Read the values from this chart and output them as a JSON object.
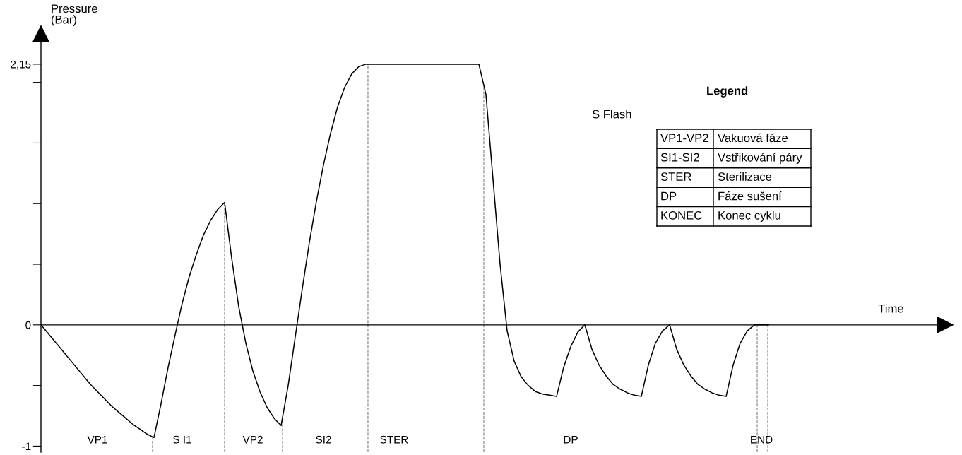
{
  "chart_data": {
    "type": "line",
    "xlabel": "Time",
    "ylabel": "Pressure\n(Bar)",
    "categories": [
      null,
      null,
      null,
      null,
      null,
      null,
      null,
      null,
      "VP1",
      null,
      null,
      null,
      null,
      null,
      null,
      null,
      null,
      null,
      null,
      null,
      "S I1",
      null,
      null,
      null,
      null,
      null,
      null,
      null,
      null,
      null,
      "VP2",
      null,
      null,
      null,
      null,
      null,
      null,
      null,
      null,
      null,
      "SI2",
      null,
      null,
      null,
      null,
      null,
      null,
      null,
      null,
      null,
      "STER",
      null,
      null,
      null,
      null,
      null,
      null,
      null,
      null,
      null,
      null,
      null,
      null,
      null,
      null,
      null,
      null,
      null,
      null,
      null,
      null,
      null,
      null,
      null,
      null,
      "DP",
      null,
      null,
      null,
      null,
      null,
      null,
      null,
      null,
      null,
      null,
      null,
      null,
      null,
      null,
      null,
      null,
      null,
      null,
      null,
      null,
      null,
      null,
      null,
      null,
      null,
      null,
      "END",
      null,
      null,
      null,
      null,
      null,
      null,
      null,
      null,
      null,
      null,
      null,
      null,
      null,
      null,
      null,
      null,
      null,
      null,
      null,
      null,
      null,
      null,
      null,
      null,
      null,
      null
    ],
    "series": [
      {
        "color": "#000000",
        "values": [
          0,
          -0.07,
          -0.14,
          -0.21,
          -0.28,
          -0.35,
          -0.42,
          -0.49,
          -0.55,
          -0.61,
          -0.67,
          -0.72,
          -0.77,
          -0.82,
          -0.86,
          -0.9,
          -0.93,
          -0.65,
          -0.35,
          -0.08,
          0.18,
          0.4,
          0.58,
          0.74,
          0.86,
          0.95,
          1.01,
          0.55,
          0.15,
          -0.15,
          -0.38,
          -0.55,
          -0.68,
          -0.77,
          -0.83,
          -0.5,
          -0.1,
          0.3,
          0.68,
          1.02,
          1.32,
          1.58,
          1.8,
          1.96,
          2.07,
          2.13,
          2.15,
          2.15,
          2.15,
          2.15,
          2.15,
          2.15,
          2.15,
          2.15,
          2.15,
          2.15,
          2.15,
          2.15,
          2.15,
          2.15,
          2.15,
          2.15,
          2.15,
          1.9,
          1.2,
          0.5,
          -0.05,
          -0.3,
          -0.43,
          -0.5,
          -0.55,
          -0.57,
          -0.58,
          -0.59,
          -0.35,
          -0.18,
          -0.06,
          0,
          -0.2,
          -0.33,
          -0.42,
          -0.49,
          -0.53,
          -0.56,
          -0.58,
          -0.59,
          -0.33,
          -0.15,
          -0.05,
          0,
          -0.2,
          -0.33,
          -0.42,
          -0.49,
          -0.53,
          -0.56,
          -0.58,
          -0.59,
          -0.33,
          -0.15,
          -0.05,
          0,
          0,
          0,
          null,
          null,
          null,
          null,
          null,
          null,
          null,
          null,
          null,
          null,
          null,
          null,
          null,
          null,
          null,
          null,
          null,
          null,
          null,
          null,
          null,
          null,
          null,
          null,
          null
        ]
      }
    ],
    "ylim": [
      -1.05,
      2.4
    ],
    "yticks": [
      {
        "value": -1,
        "label": "-1"
      },
      {
        "value": -0.5,
        "label": null
      },
      0,
      {
        "value": 0.5,
        "label": null
      },
      {
        "value": 1,
        "label": null
      },
      {
        "value": 1.5,
        "label": null
      },
      {
        "value": 2,
        "label": null
      },
      {
        "value": 2.15,
        "label": "2,15"
      }
    ],
    "line_style": "solid",
    "marker": "none",
    "annotations": [
      "S Flash",
      "Legend",
      "VP1-VP2",
      "Vakuová fáze",
      "SI1-SI2",
      "Vstřikování páry",
      "STER",
      "Sterilizace",
      "DP",
      "Fáze sušení",
      "KONEC",
      "Konec cyklu"
    ]
  }
}
